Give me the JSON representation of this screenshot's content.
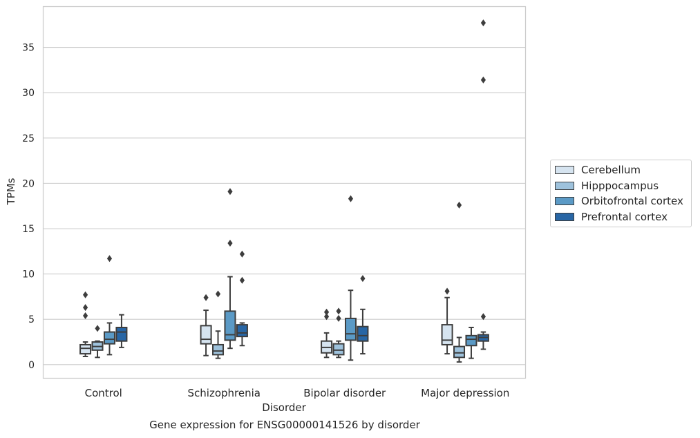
{
  "chart_data": {
    "type": "box",
    "title": "",
    "caption": "Gene expression for ENSG00000141526 by disorder",
    "xlabel": "Disorder",
    "ylabel": "TPMs",
    "ylim": [
      -1.5,
      39.5
    ],
    "yticks": [
      0,
      5,
      10,
      15,
      20,
      25,
      30,
      35
    ],
    "grid": "horizontal",
    "legend_position": "right-outside",
    "categories": [
      "Control",
      "Schizophrenia",
      "Bipolar disorder",
      "Major depression"
    ],
    "series": [
      {
        "name": "Cerebellum",
        "color": "#d6e4f0",
        "boxes": [
          {
            "q1": 1.2,
            "median": 1.8,
            "q3": 2.2,
            "whisker_low": 0.9,
            "whisker_high": 2.5,
            "outliers": [
              5.4,
              6.3,
              7.7
            ]
          },
          {
            "q1": 2.3,
            "median": 2.8,
            "q3": 4.3,
            "whisker_low": 1.0,
            "whisker_high": 6.0,
            "outliers": [
              7.4
            ]
          },
          {
            "q1": 1.3,
            "median": 1.9,
            "q3": 2.6,
            "whisker_low": 0.8,
            "whisker_high": 3.5,
            "outliers": [
              5.3,
              5.8
            ]
          },
          {
            "q1": 2.2,
            "median": 2.7,
            "q3": 4.4,
            "whisker_low": 1.2,
            "whisker_high": 7.4,
            "outliers": [
              8.1
            ]
          }
        ]
      },
      {
        "name": "Hipppocampus",
        "color": "#9ec2dc",
        "boxes": [
          {
            "q1": 1.6,
            "median": 2.0,
            "q3": 2.5,
            "whisker_low": 0.8,
            "whisker_high": 2.6,
            "outliers": [
              4.0
            ]
          },
          {
            "q1": 1.1,
            "median": 1.5,
            "q3": 2.2,
            "whisker_low": 0.7,
            "whisker_high": 3.7,
            "outliers": [
              7.8
            ]
          },
          {
            "q1": 1.1,
            "median": 1.6,
            "q3": 2.3,
            "whisker_low": 0.8,
            "whisker_high": 2.6,
            "outliers": [
              5.1,
              5.9
            ]
          },
          {
            "q1": 0.8,
            "median": 1.3,
            "q3": 2.0,
            "whisker_low": 0.3,
            "whisker_high": 3.0,
            "outliers": [
              17.6
            ]
          }
        ]
      },
      {
        "name": "Orbitofrontal cortex",
        "color": "#5b9ac6",
        "boxes": [
          {
            "q1": 2.3,
            "median": 2.8,
            "q3": 3.6,
            "whisker_low": 1.1,
            "whisker_high": 4.6,
            "outliers": [
              11.7
            ]
          },
          {
            "q1": 2.7,
            "median": 3.3,
            "q3": 5.9,
            "whisker_low": 1.8,
            "whisker_high": 9.7,
            "outliers": [
              13.4,
              19.1
            ]
          },
          {
            "q1": 2.7,
            "median": 3.4,
            "q3": 5.1,
            "whisker_low": 0.5,
            "whisker_high": 8.2,
            "outliers": [
              18.3
            ]
          },
          {
            "q1": 2.1,
            "median": 2.8,
            "q3": 3.2,
            "whisker_low": 0.7,
            "whisker_high": 4.1,
            "outliers": []
          }
        ]
      },
      {
        "name": "Prefrontal cortex",
        "color": "#2866a5",
        "boxes": [
          {
            "q1": 2.6,
            "median": 3.6,
            "q3": 4.1,
            "whisker_low": 1.9,
            "whisker_high": 5.5,
            "outliers": []
          },
          {
            "q1": 3.1,
            "median": 3.5,
            "q3": 4.4,
            "whisker_low": 2.1,
            "whisker_high": 4.6,
            "outliers": [
              9.3,
              12.2
            ]
          },
          {
            "q1": 2.6,
            "median": 3.2,
            "q3": 4.2,
            "whisker_low": 1.2,
            "whisker_high": 6.1,
            "outliers": [
              9.5
            ]
          },
          {
            "q1": 2.6,
            "median": 3.0,
            "q3": 3.3,
            "whisker_low": 1.7,
            "whisker_high": 3.6,
            "outliers": [
              5.3,
              31.4,
              37.7
            ]
          }
        ]
      }
    ]
  }
}
